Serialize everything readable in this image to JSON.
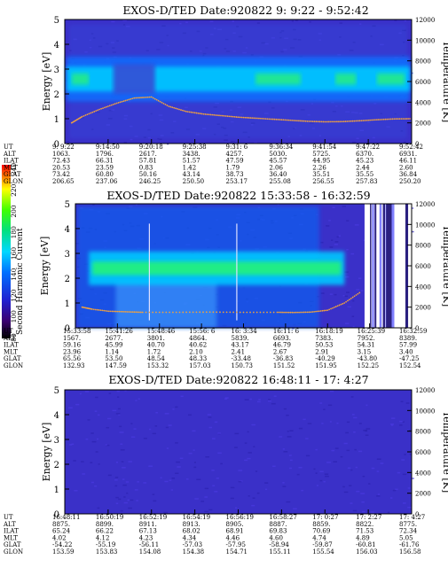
{
  "colorbar": {
    "label": "Second Harmonic Current",
    "ticks": [
      "240",
      "220",
      "200",
      "180",
      "160",
      "140",
      "120",
      "100",
      "80"
    ]
  },
  "chart_data": [
    {
      "type": "heatmap",
      "title": "EXOS-D/TED   Date:920822   9: 9:22 - 9:52:42",
      "ylabel": "Energy [eV]",
      "y2label": "Temperature [K]",
      "ylim": [
        0,
        5
      ],
      "y_ticks": [
        "0",
        "1",
        "2",
        "3",
        "4",
        "5"
      ],
      "y2lim": [
        0,
        12000
      ],
      "y2_ticks": [
        "0",
        "2000",
        "4000",
        "6000",
        "8000",
        "10000",
        "12000"
      ],
      "orbit_labels": [
        "UT",
        "ALT",
        "ILAT",
        "MLT",
        "GLAT",
        "GLON"
      ],
      "orbit": [
        [
          "9: 9:22",
          "1063.",
          "72.43",
          "20.53",
          "73.42",
          "206.65"
        ],
        [
          "9:14:50",
          "1796.",
          "66.31",
          "23.59",
          "60.80",
          "237.06"
        ],
        [
          "9:20:18",
          "2617.",
          "57.81",
          "0.83",
          "50.16",
          "246.25"
        ],
        [
          "9:25:38",
          "3438.",
          "51.57",
          "1.42",
          "43.14",
          "250.50"
        ],
        [
          "9:31: 6",
          "4257.",
          "47.59",
          "1.79",
          "38.73",
          "253.17"
        ],
        [
          "9:36:34",
          "5030.",
          "45.57",
          "2.06",
          "36.40",
          "255.08"
        ],
        [
          "9:41:54",
          "5725.",
          "44.95",
          "2.26",
          "35.51",
          "256.55"
        ],
        [
          "9:47:22",
          "6370.",
          "45.23",
          "2.44",
          "35.55",
          "257.83"
        ],
        [
          "9:52:42",
          "6931.",
          "46.11",
          "2.60",
          "36.84",
          "250.20"
        ]
      ],
      "temperature_series": {
        "x_frac": [
          0.02,
          0.05,
          0.1,
          0.15,
          0.2,
          0.25,
          0.3,
          0.35,
          0.4,
          0.45,
          0.5,
          0.55,
          0.6,
          0.65,
          0.7,
          0.75,
          0.8,
          0.85,
          0.9,
          0.95,
          1.0
        ],
        "y_K": [
          2000,
          2600,
          3300,
          3900,
          4400,
          4500,
          3600,
          3100,
          2850,
          2700,
          2550,
          2450,
          2350,
          2250,
          2150,
          2100,
          2120,
          2200,
          2300,
          2380,
          2400
        ]
      },
      "band": {
        "energy_center_eV": 2.6,
        "energy_halfwidth_eV": 0.5
      }
    },
    {
      "type": "heatmap",
      "title": "EXOS-D/TED   Date:920822   15:33:58 - 16:32:59",
      "ylabel": "Energy [eV]",
      "y2label": "Temperature [K]",
      "ylim": [
        0,
        5
      ],
      "y_ticks": [
        "0",
        "1",
        "2",
        "3",
        "4",
        "5"
      ],
      "y2lim": [
        0,
        12000
      ],
      "y2_ticks": [
        "0",
        "2000",
        "4000",
        "6000",
        "8000",
        "10000",
        "12000"
      ],
      "orbit_labels": [
        "UT",
        "ALT",
        "ILAT",
        "MLT",
        "GLAT",
        "GLON"
      ],
      "orbit": [
        [
          "15:33:58",
          "1567.",
          "59.16",
          "23.96",
          "65.56",
          "132.93"
        ],
        [
          "15:41:26",
          "2677.",
          "45.99",
          "1.14",
          "53.50",
          "147.59"
        ],
        [
          "15:48:46",
          "3801.",
          "40.70",
          "1.72",
          "48.54",
          "153.32"
        ],
        [
          "15:56: 6",
          "4864.",
          "40.62",
          "2.10",
          "48.33",
          "157.03"
        ],
        [
          "16: 3:34",
          "5839.",
          "43.17",
          "2.41",
          "-33.48",
          "150.73"
        ],
        [
          "16:11: 6",
          "6693.",
          "46.79",
          "2.67",
          "-36.83",
          "151.52"
        ],
        [
          "16:18:19",
          "7383.",
          "50.53",
          "2.91",
          "-40.29",
          "151.95"
        ],
        [
          "16:25:39",
          "7952.",
          "54.31",
          "3.15",
          "-43.80",
          "152.25"
        ],
        [
          "16:32:59",
          "8389.",
          "57.99",
          "3.40",
          "-47.25",
          "152.54"
        ]
      ],
      "temperature_series": {
        "x_frac": [
          0.02,
          0.05,
          0.1,
          0.15,
          0.2,
          0.3,
          0.4,
          0.5,
          0.6,
          0.65,
          0.7,
          0.75,
          0.8,
          0.85
        ],
        "y_K": [
          2000,
          1800,
          1600,
          1550,
          1500,
          1500,
          1520,
          1500,
          1500,
          1480,
          1520,
          1700,
          2400,
          3500
        ]
      },
      "band": {
        "energy_center_eV": 2.4,
        "energy_halfwidth_eV": 0.45
      }
    },
    {
      "type": "heatmap",
      "title": "EXOS-D/TED   Date:920822   16:48:11 - 17: 4:27",
      "ylabel": "Energy [eV]",
      "y2label": "Temperature [K]",
      "ylim": [
        0,
        5
      ],
      "y_ticks": [
        "0",
        "1",
        "2",
        "3",
        "4",
        "5"
      ],
      "y2lim": [
        0,
        12000
      ],
      "y2_ticks": [
        "0",
        "2000",
        "4000",
        "6000",
        "8000",
        "10000",
        "12000"
      ],
      "orbit_labels": [
        "UT",
        "ALT",
        "ILAT",
        "MLT",
        "GLAT",
        "GLON"
      ],
      "orbit": [
        [
          "16:48:11",
          "8875.",
          "65.24",
          "4.02",
          "-54.22",
          "153.59"
        ],
        [
          "16:50:19",
          "8899.",
          "66.22",
          "4.12",
          "-55.19",
          "153.83"
        ],
        [
          "16:52:19",
          "8911.",
          "67.13",
          "4.23",
          "-56.11",
          "154.08"
        ],
        [
          "16:54:19",
          "8913.",
          "68.02",
          "4.34",
          "-57.03",
          "154.38"
        ],
        [
          "16:56:19",
          "8905.",
          "68.91",
          "4.46",
          "-57.95",
          "154.71"
        ],
        [
          "16:58:27",
          "8887.",
          "69.83",
          "4.60",
          "-58.94",
          "155.11"
        ],
        [
          "17: 0:27",
          "8859.",
          "70.69",
          "4.74",
          "-59.87",
          "155.54"
        ],
        [
          "17: 2:27",
          "8822.",
          "71.53",
          "4.89",
          "-60.81",
          "156.03"
        ],
        [
          "17: 4:27",
          "8775.",
          "72.34",
          "5.05",
          "-61.76",
          "156.58"
        ]
      ],
      "temperature_series": {
        "x_frac": [],
        "y_K": []
      },
      "band": null
    }
  ]
}
